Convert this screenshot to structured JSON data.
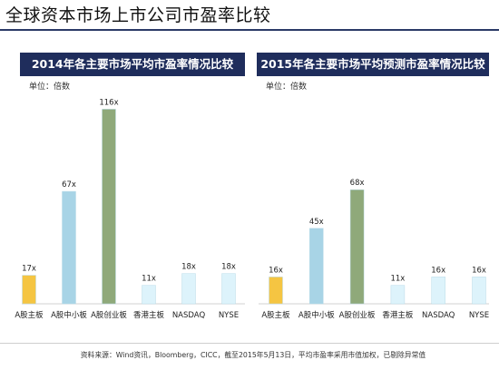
{
  "page": {
    "title": "全球资本市场上市公司市盈率比较",
    "source": "资料来源：Wind资讯，Bloomberg，CICC，截至2015年5月13日，平均市盈率采用市值加权，已剔除异常值"
  },
  "chart_data": [
    {
      "type": "bar",
      "title": "2014年各主要市场平均市盈率情况比较",
      "unit_label": "单位：倍数",
      "categories": [
        "A股主板",
        "A股中小板",
        "A股创业板",
        "香港主板",
        "NASDAQ",
        "NYSE"
      ],
      "values": [
        17,
        67,
        116,
        11,
        18,
        18
      ],
      "value_labels": [
        "17x",
        "67x",
        "116x",
        "11x",
        "18x",
        "18x"
      ],
      "colors": [
        "#f5c542",
        "#a8d4e6",
        "#8fa97a",
        "#ddf3fb",
        "#ddf3fb",
        "#ddf3fb"
      ],
      "ylim": [
        0,
        120
      ],
      "grid": false
    },
    {
      "type": "bar",
      "title": "2015年各主要市场平均预测市盈率情况比较",
      "unit_label": "单位：倍数",
      "categories": [
        "A股主板",
        "A股中小板",
        "A股创业板",
        "香港主板",
        "NASDAQ",
        "NYSE"
      ],
      "values": [
        16,
        45,
        68,
        11,
        16,
        16
      ],
      "value_labels": [
        "16x",
        "45x",
        "68x",
        "11x",
        "16x",
        "16x"
      ],
      "colors": [
        "#f5c542",
        "#a8d4e6",
        "#8fa97a",
        "#ddf3fb",
        "#ddf3fb",
        "#ddf3fb"
      ],
      "ylim": [
        0,
        120
      ],
      "grid": false
    }
  ]
}
